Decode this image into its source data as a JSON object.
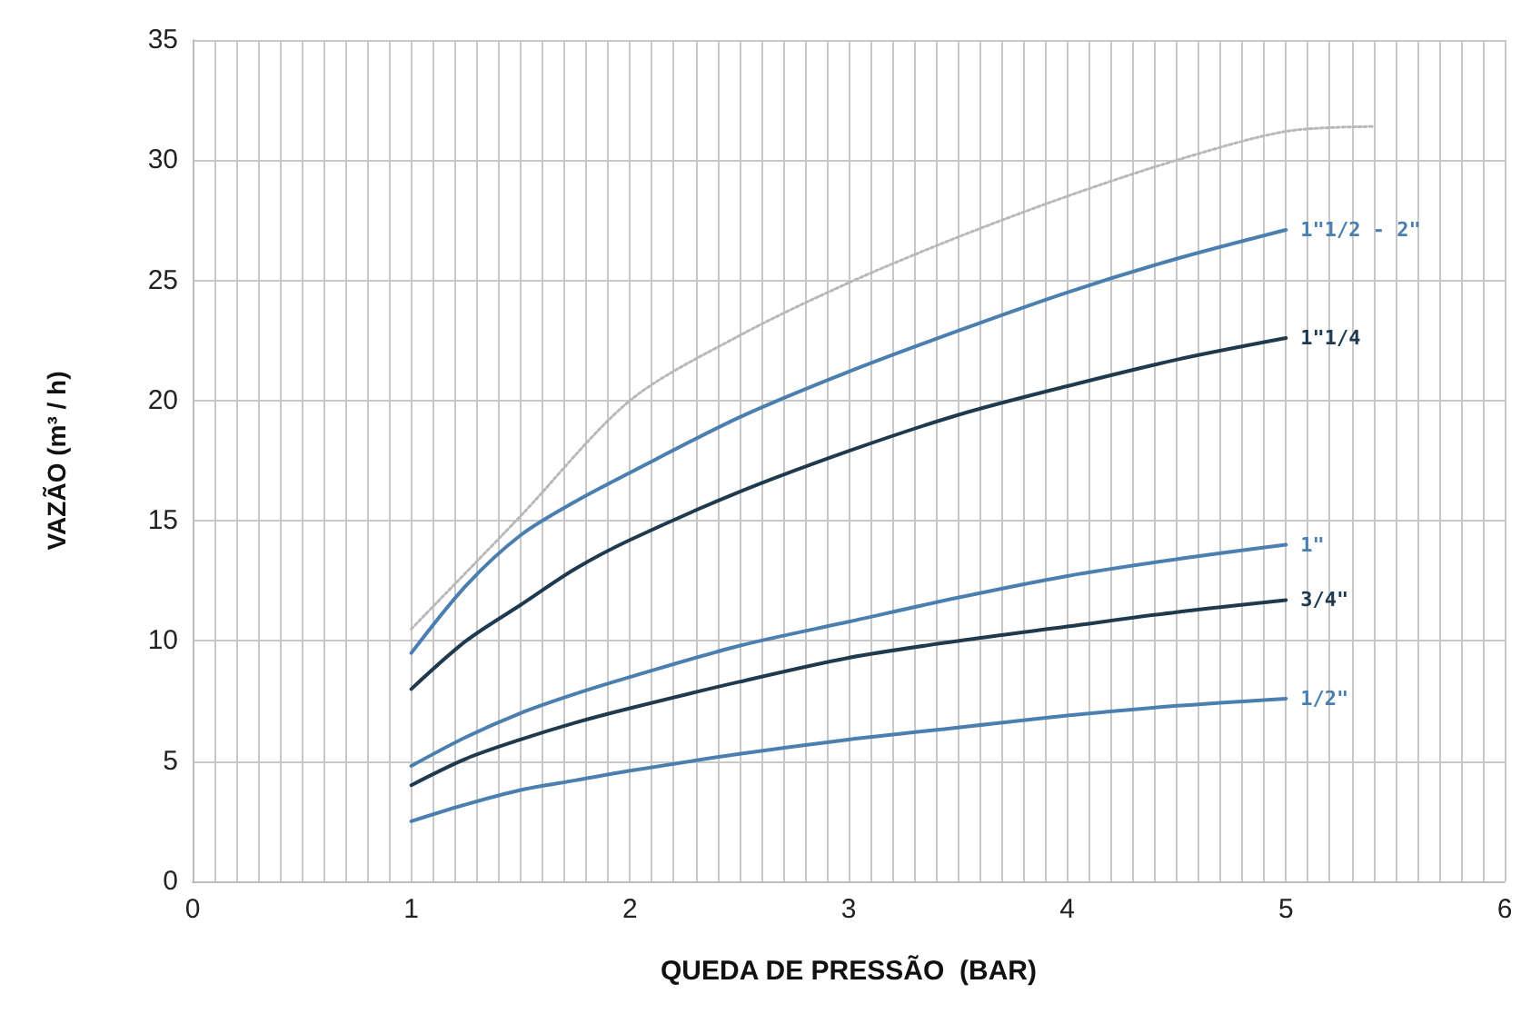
{
  "chart_data": {
    "type": "line",
    "xlabel": "QUEDA DE PRESSÃO  (BAR)",
    "ylabel": "VAZÃO (m³ / h)",
    "xlim": [
      0,
      6
    ],
    "xticks": [
      0,
      1,
      2,
      3,
      4,
      5,
      6
    ],
    "ylim": [
      0,
      35
    ],
    "yticks": [
      0,
      5,
      10,
      15,
      20,
      25,
      30,
      35
    ],
    "grid": true,
    "legend": false,
    "marker": "none",
    "line_style": "solid",
    "x": [
      1,
      1.25,
      1.5,
      1.75,
      2,
      2.5,
      3,
      3.5,
      4,
      4.5,
      5
    ],
    "series": [
      {
        "name": "1\"1/2 - 2\"",
        "color": "#4a7fb0",
        "values": [
          9.5,
          12.3,
          14.4,
          15.8,
          17.0,
          19.3,
          21.2,
          22.9,
          24.5,
          25.9,
          27.1
        ]
      },
      {
        "name": "1\"1/4",
        "color": "#1f3a4f",
        "values": [
          8.0,
          10.0,
          11.5,
          13.0,
          14.2,
          16.2,
          17.9,
          19.4,
          20.6,
          21.7,
          22.6
        ]
      },
      {
        "name": "1\"",
        "color": "#4a7fb0",
        "values": [
          4.8,
          6.0,
          7.0,
          7.8,
          8.5,
          9.8,
          10.8,
          11.8,
          12.7,
          13.4,
          14.0
        ]
      },
      {
        "name": "3/4\"",
        "color": "#1f3a4f",
        "values": [
          4.0,
          5.1,
          5.9,
          6.6,
          7.2,
          8.3,
          9.3,
          10.0,
          10.6,
          11.2,
          11.7
        ]
      },
      {
        "name": "1/2\"",
        "color": "#4a7fb0",
        "values": [
          2.5,
          3.2,
          3.8,
          4.2,
          4.6,
          5.3,
          5.9,
          6.4,
          6.9,
          7.3,
          7.6
        ]
      },
      {
        "color": "#b8b8b8",
        "line_style": "dotted",
        "x": [
          1,
          1.5,
          2,
          2.5,
          3,
          3.5,
          4,
          4.5,
          5,
          5.4
        ],
        "values": [
          10.5,
          15.2,
          20.0,
          22.7,
          24.9,
          26.8,
          28.5,
          30.0,
          31.2,
          31.4
        ]
      }
    ]
  }
}
